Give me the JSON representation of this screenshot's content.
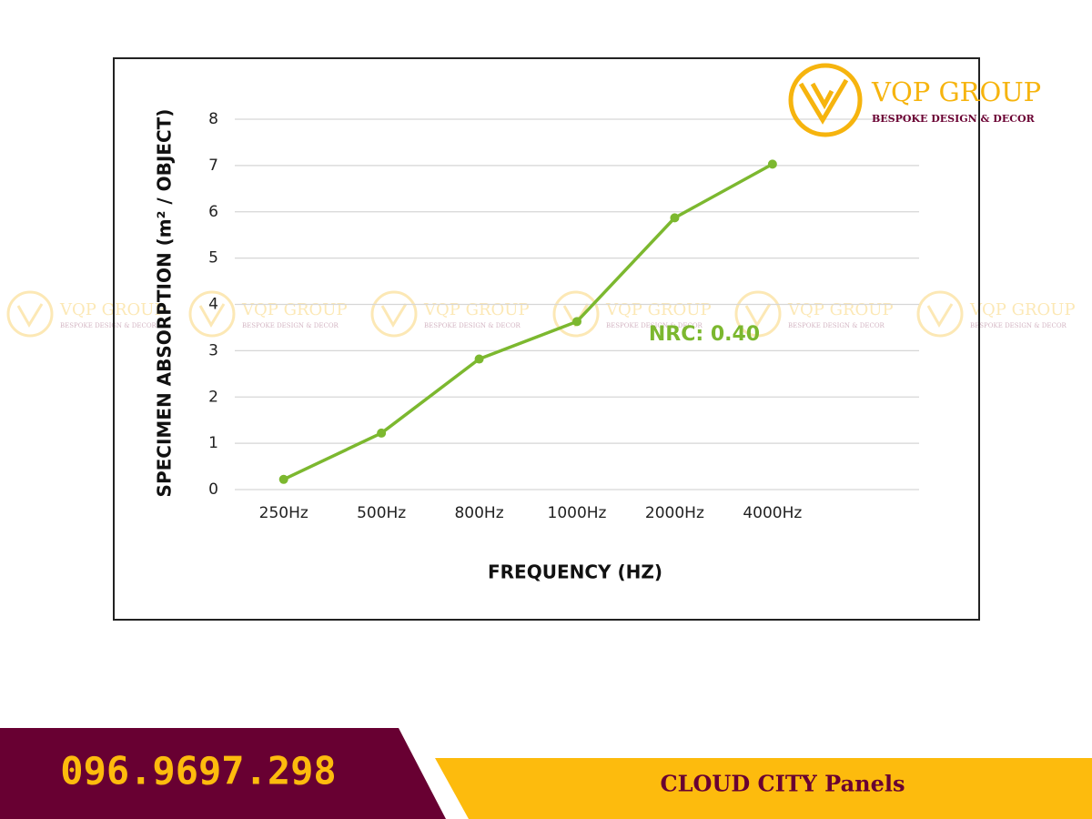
{
  "chart_data": {
    "type": "line",
    "y_label": "SPECIMEN ABSORPTION (m² / OBJECT)",
    "x_label": "FREQUENCY (HZ)",
    "annotation": "NRC: 0.40",
    "categories": [
      "250Hz",
      "500Hz",
      "800Hz",
      "1000Hz",
      "2000Hz",
      "4000Hz",
      null
    ],
    "series": [
      {
        "color": "#7cb82f",
        "values": [
          0.22,
          1.22,
          2.82,
          3.63,
          5.87,
          7.03,
          null
        ]
      }
    ],
    "ylim": [
      0,
      8
    ],
    "yticks": [
      0,
      1,
      2,
      3,
      4,
      5,
      6,
      7,
      8
    ],
    "grid": true
  },
  "logo": {
    "name": "VQP GROUP",
    "tagline": "BESPOKE DESIGN & DECOR"
  },
  "footer": {
    "phone": "096.9697.298",
    "product": "CLOUD CITY Panels"
  }
}
